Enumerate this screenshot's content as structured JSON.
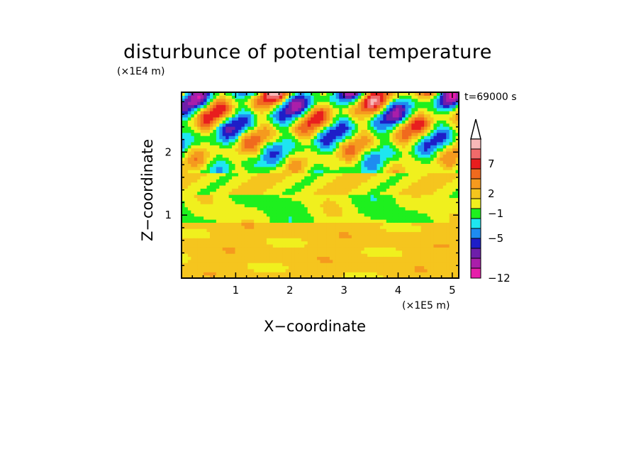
{
  "chart_data": {
    "type": "heatmap",
    "title": "disturbunce of potential temperature",
    "xlabel": "X−coordinate",
    "ylabel": "Z−coordinate",
    "x_multiplier": "(×1E5 m)",
    "y_multiplier": "(×1E4 m)",
    "time_label": "t=69000 s",
    "xlim": [
      0,
      5.12
    ],
    "ylim": [
      0,
      2.95
    ],
    "x_ticks": [
      "1",
      "2",
      "3",
      "4",
      "5"
    ],
    "y_ticks": [
      "1",
      "2"
    ],
    "x_tick_values": [
      1,
      2,
      3,
      4,
      5
    ],
    "y_tick_values": [
      1,
      2
    ],
    "colorbar": {
      "tick_labels": [
        "7",
        "2",
        "−1",
        "−5",
        "−12"
      ],
      "tick_values": [
        7,
        2,
        -1,
        -5,
        -12
      ],
      "extend": "max",
      "levels_from_top": [
        {
          "color": "#f8b8b8"
        },
        {
          "color": "#f06a6a"
        },
        {
          "color": "#e81e1e"
        },
        {
          "color": "#f06a1e"
        },
        {
          "color": "#f59a1e"
        },
        {
          "color": "#f5c51e"
        },
        {
          "color": "#f0f01e"
        },
        {
          "color": "#1ef01e"
        },
        {
          "color": "#1ee6f0"
        },
        {
          "color": "#1e8cf0"
        },
        {
          "color": "#1e1ec8"
        },
        {
          "color": "#6e1eaa"
        },
        {
          "color": "#aa1eaa"
        },
        {
          "color": "#e61eaa"
        }
      ]
    },
    "vertical_structure": [
      {
        "z_range": [
          0.0,
          0.9
        ],
        "typical_value": 2.5,
        "description_color": "yellow/orange"
      },
      {
        "z_range": [
          0.9,
          1.35
        ],
        "typical_value": 0.0,
        "description_color": "green"
      },
      {
        "z_range": [
          1.35,
          1.65
        ],
        "typical_value": 1.5,
        "description_color": "yellow/green"
      },
      {
        "z_range": [
          1.65,
          2.95
        ],
        "typical_value": 0.0,
        "description_color": "alternating red/blue waves"
      }
    ]
  }
}
